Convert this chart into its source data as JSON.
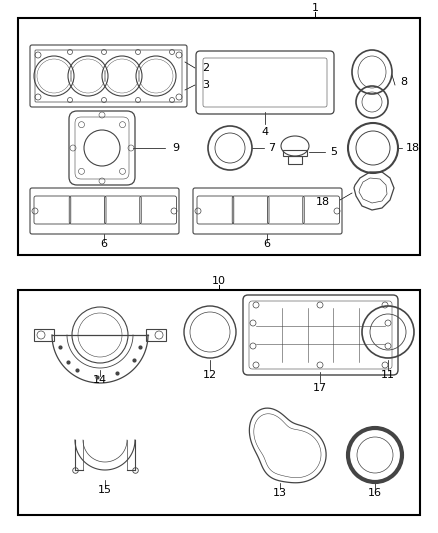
{
  "bg_color": "#ffffff",
  "line_color": "#444444",
  "label_color": "#000000",
  "fig_width": 4.38,
  "fig_height": 5.33,
  "dpi": 100
}
